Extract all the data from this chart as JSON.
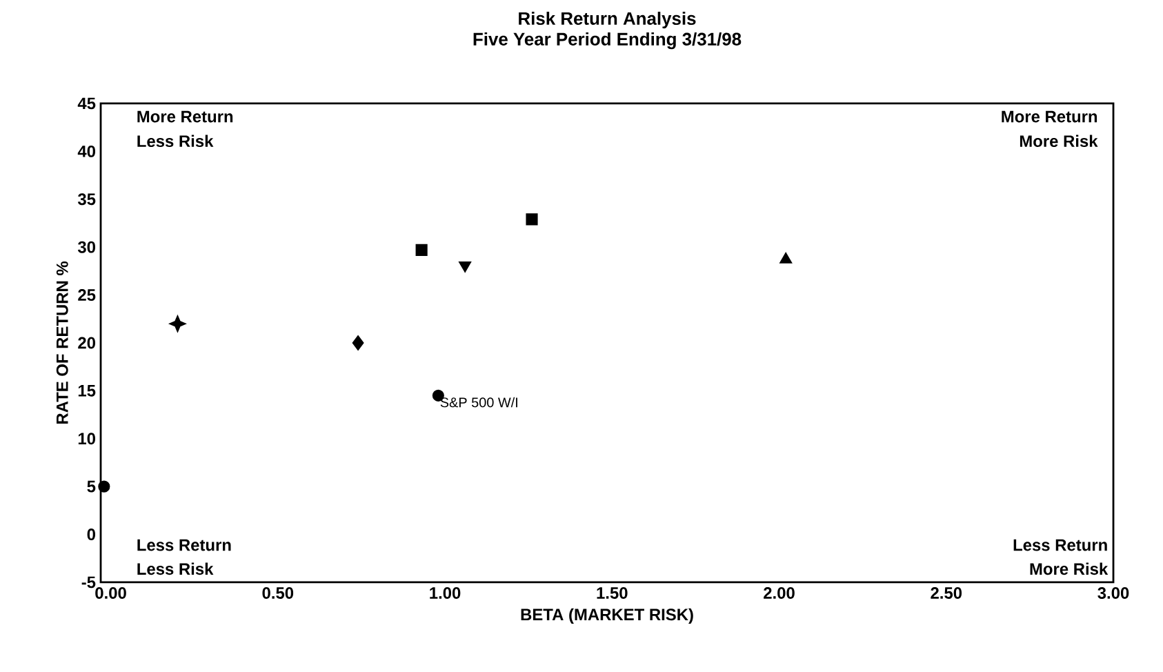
{
  "chart_data": {
    "type": "scatter",
    "title": "Risk Return Analysis",
    "subtitle": "Five Year Period Ending 3/31/98",
    "xlabel": "BETA (MARKET RISK)",
    "ylabel": "RATE OF RETURN %",
    "xlim": [
      -0.03,
      3.0
    ],
    "ylim": [
      -5,
      45
    ],
    "xticks": [
      {
        "value": 0,
        "label": "0.00"
      },
      {
        "value": 0.5,
        "label": "0.50"
      },
      {
        "value": 1,
        "label": "1.00"
      },
      {
        "value": 1.5,
        "label": "1.50"
      },
      {
        "value": 2,
        "label": "2.00"
      },
      {
        "value": 2.5,
        "label": "2.50"
      },
      {
        "value": 3,
        "label": "3.00"
      }
    ],
    "yticks": [
      -5,
      0,
      5,
      10,
      15,
      20,
      25,
      30,
      35,
      40,
      45
    ],
    "series": [
      {
        "x": [
          -0.02
        ],
        "values": [
          5
        ],
        "color": "#000000",
        "marker": "circle"
      },
      {
        "x": [
          0.2
        ],
        "values": [
          22
        ],
        "color": "#000000",
        "marker": "star"
      },
      {
        "x": [
          0.74
        ],
        "values": [
          20
        ],
        "color": "#000000",
        "marker": "diamond"
      },
      {
        "name": "S&P 500 W/I",
        "x": [
          0.98
        ],
        "values": [
          14.5
        ],
        "color": "#000000",
        "marker": "circle"
      },
      {
        "x": [
          0.93
        ],
        "values": [
          29.7
        ],
        "color": "#000000",
        "marker": "square"
      },
      {
        "x": [
          1.06
        ],
        "values": [
          28.1
        ],
        "color": "#000000",
        "marker": "triangle-down"
      },
      {
        "x": [
          1.26
        ],
        "values": [
          32.9
        ],
        "color": "#000000",
        "marker": "square"
      },
      {
        "x": [
          2.02
        ],
        "values": [
          28.7
        ],
        "color": "#000000",
        "marker": "triangle"
      }
    ],
    "annotations": [
      "More Return",
      "Less Risk",
      "More Return",
      "More Risk",
      "Less Return",
      "Less Risk",
      "Less Return",
      "More Risk"
    ]
  }
}
